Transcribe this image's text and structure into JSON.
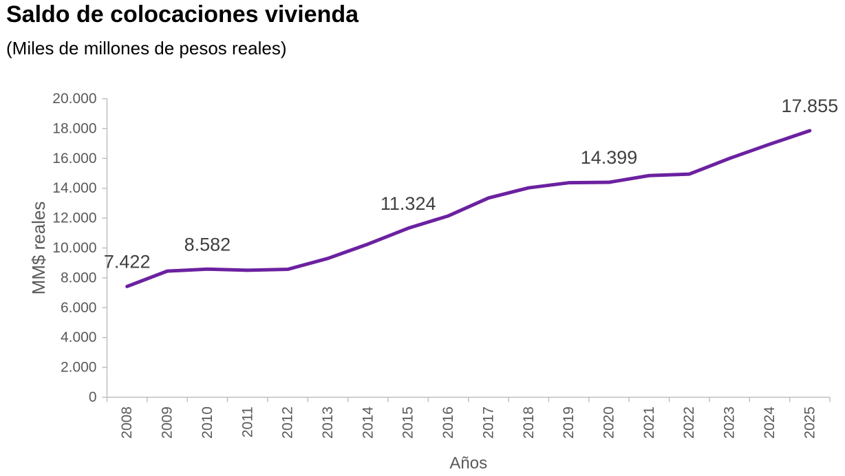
{
  "chart_data": {
    "type": "line",
    "title": "Saldo de colocaciones vivienda",
    "subtitle": "(Miles de millones de pesos reales)",
    "xlabel": "Años",
    "ylabel": "MM$ reales",
    "categories": [
      "2008",
      "2009",
      "2010",
      "2011",
      "2012",
      "2013",
      "2014",
      "2015",
      "2016",
      "2017",
      "2018",
      "2019",
      "2020",
      "2021",
      "2022",
      "2023",
      "2024",
      "2025"
    ],
    "values": [
      7422,
      8450,
      8582,
      8510,
      8570,
      9300,
      10260,
      11324,
      12150,
      13350,
      14030,
      14370,
      14399,
      14850,
      14950,
      16000,
      16950,
      17855
    ],
    "data_labels": [
      {
        "category": "2008",
        "text": "7.422"
      },
      {
        "category": "2010",
        "text": "8.582"
      },
      {
        "category": "2015",
        "text": "11.324"
      },
      {
        "category": "2020",
        "text": "14.399"
      },
      {
        "category": "2025",
        "text": "17.855"
      }
    ],
    "ylim": [
      0,
      20000
    ],
    "ytick_step": 2000,
    "ytick_labels": [
      "0",
      "2.000",
      "4.000",
      "6.000",
      "8.000",
      "10.000",
      "12.000",
      "14.000",
      "16.000",
      "18.000",
      "20.000"
    ],
    "grid": false,
    "legend": "none",
    "colors": {
      "line": "#6B21A0",
      "axis": "#BFBFBF",
      "tick_label": "#595959",
      "axis_title": "#595959",
      "data_label": "#404040"
    }
  }
}
